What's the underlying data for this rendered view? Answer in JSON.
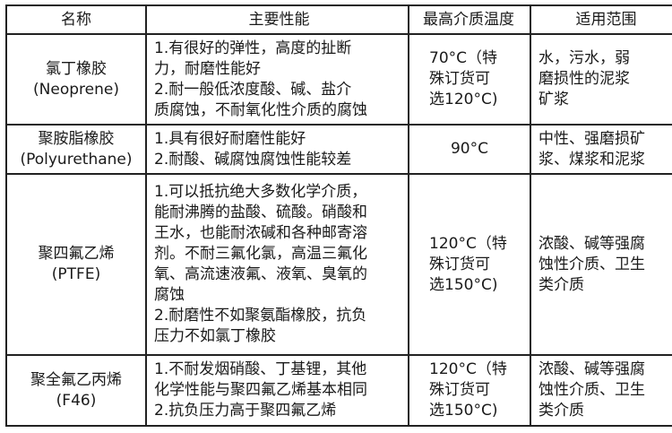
{
  "headers": [
    "名称",
    "主要性能",
    "最高介质温度",
    "适用范围"
  ],
  "rows": [
    {
      "name": [
        "氯丁橡胶",
        "(Neoprene)"
      ],
      "performance": [
        "1.有很好的弹性，高度的扯断",
        "力，耐磨性能好",
        "2.耐一般低浓度酸、碱、盐介",
        "质腐蚀，不耐氧化性介质的腐蚀"
      ],
      "temperature": [
        "70°C（特",
        "殊订货可",
        "选120°C)"
      ],
      "application": [
        "水，污水，弱",
        "磨损性的泥浆",
        "矿浆"
      ]
    },
    {
      "name": [
        "聚胺脂橡胶",
        "(Polyurethane)"
      ],
      "performance": [
        "1.具有很好耐磨性能好",
        "2.耐酸、碱腐蚀腐蚀性能较差"
      ],
      "temperature": [
        "90°C"
      ],
      "application": [
        "中性、强磨损矿",
        "浆、煤浆和泥浆"
      ]
    },
    {
      "name": [
        "聚四氟乙烯",
        "(PTFE)"
      ],
      "performance": [
        "1.可以抵抗绝大多数化学介质，",
        "能耐沸腾的盐酸、硫酸。硝酸和",
        "王水，也能耐浓碱和各种邮寄溶",
        "剂。不耐三氟化氯，高温三氟化",
        "氧、高流速液氟、液氧、臭氧的",
        "腐蚀",
        "2.耐磨性不如聚氨酯橡胶，抗负",
        "压力不如氯丁橡胶"
      ],
      "temperature": [
        "120°C（特",
        "殊订货可",
        "选150°C)"
      ],
      "application": [
        "浓酸、碱等强腐",
        "蚀性介质、卫生",
        "类介质"
      ]
    },
    {
      "name": [
        "聚全氟乙丙烯",
        "(F46)"
      ],
      "performance": [
        "1.不耐发烟硝酸、丁基锂，其他",
        "化学性能与聚四氟乙烯基本相同",
        "2.抗负压力高于聚四氟乙烯"
      ],
      "temperature": [
        "120°C（特",
        "殊订货可",
        "选150°C)"
      ],
      "application": [
        "浓酸、碱等强腐",
        "蚀性介质、卫生",
        "类介质"
      ]
    }
  ]
}
